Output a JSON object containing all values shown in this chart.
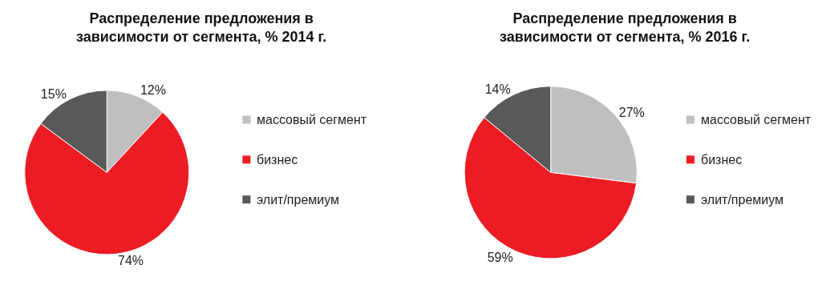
{
  "chart_data": [
    {
      "type": "pie",
      "title": "Распределение предложения в зависимости от сегмента, % 2014 г.",
      "categories": [
        "массовый сегмент",
        "бизнес",
        "элит/премиум"
      ],
      "values": [
        12,
        74,
        15
      ],
      "value_labels": [
        "12%",
        "74%",
        "15%"
      ],
      "colors": [
        "#bfbfbf",
        "#ed1c24",
        "#595959"
      ],
      "legend": "right"
    },
    {
      "type": "pie",
      "title": "Распределение предложения в зависимости от сегмента, % 2016 г.",
      "categories": [
        "массовый сегмент",
        "бизнес",
        "элит/премиум"
      ],
      "values": [
        27,
        59,
        14
      ],
      "value_labels": [
        "27%",
        "59%",
        "14%"
      ],
      "colors": [
        "#bfbfbf",
        "#ed1c24",
        "#595959"
      ],
      "legend": "right"
    }
  ]
}
